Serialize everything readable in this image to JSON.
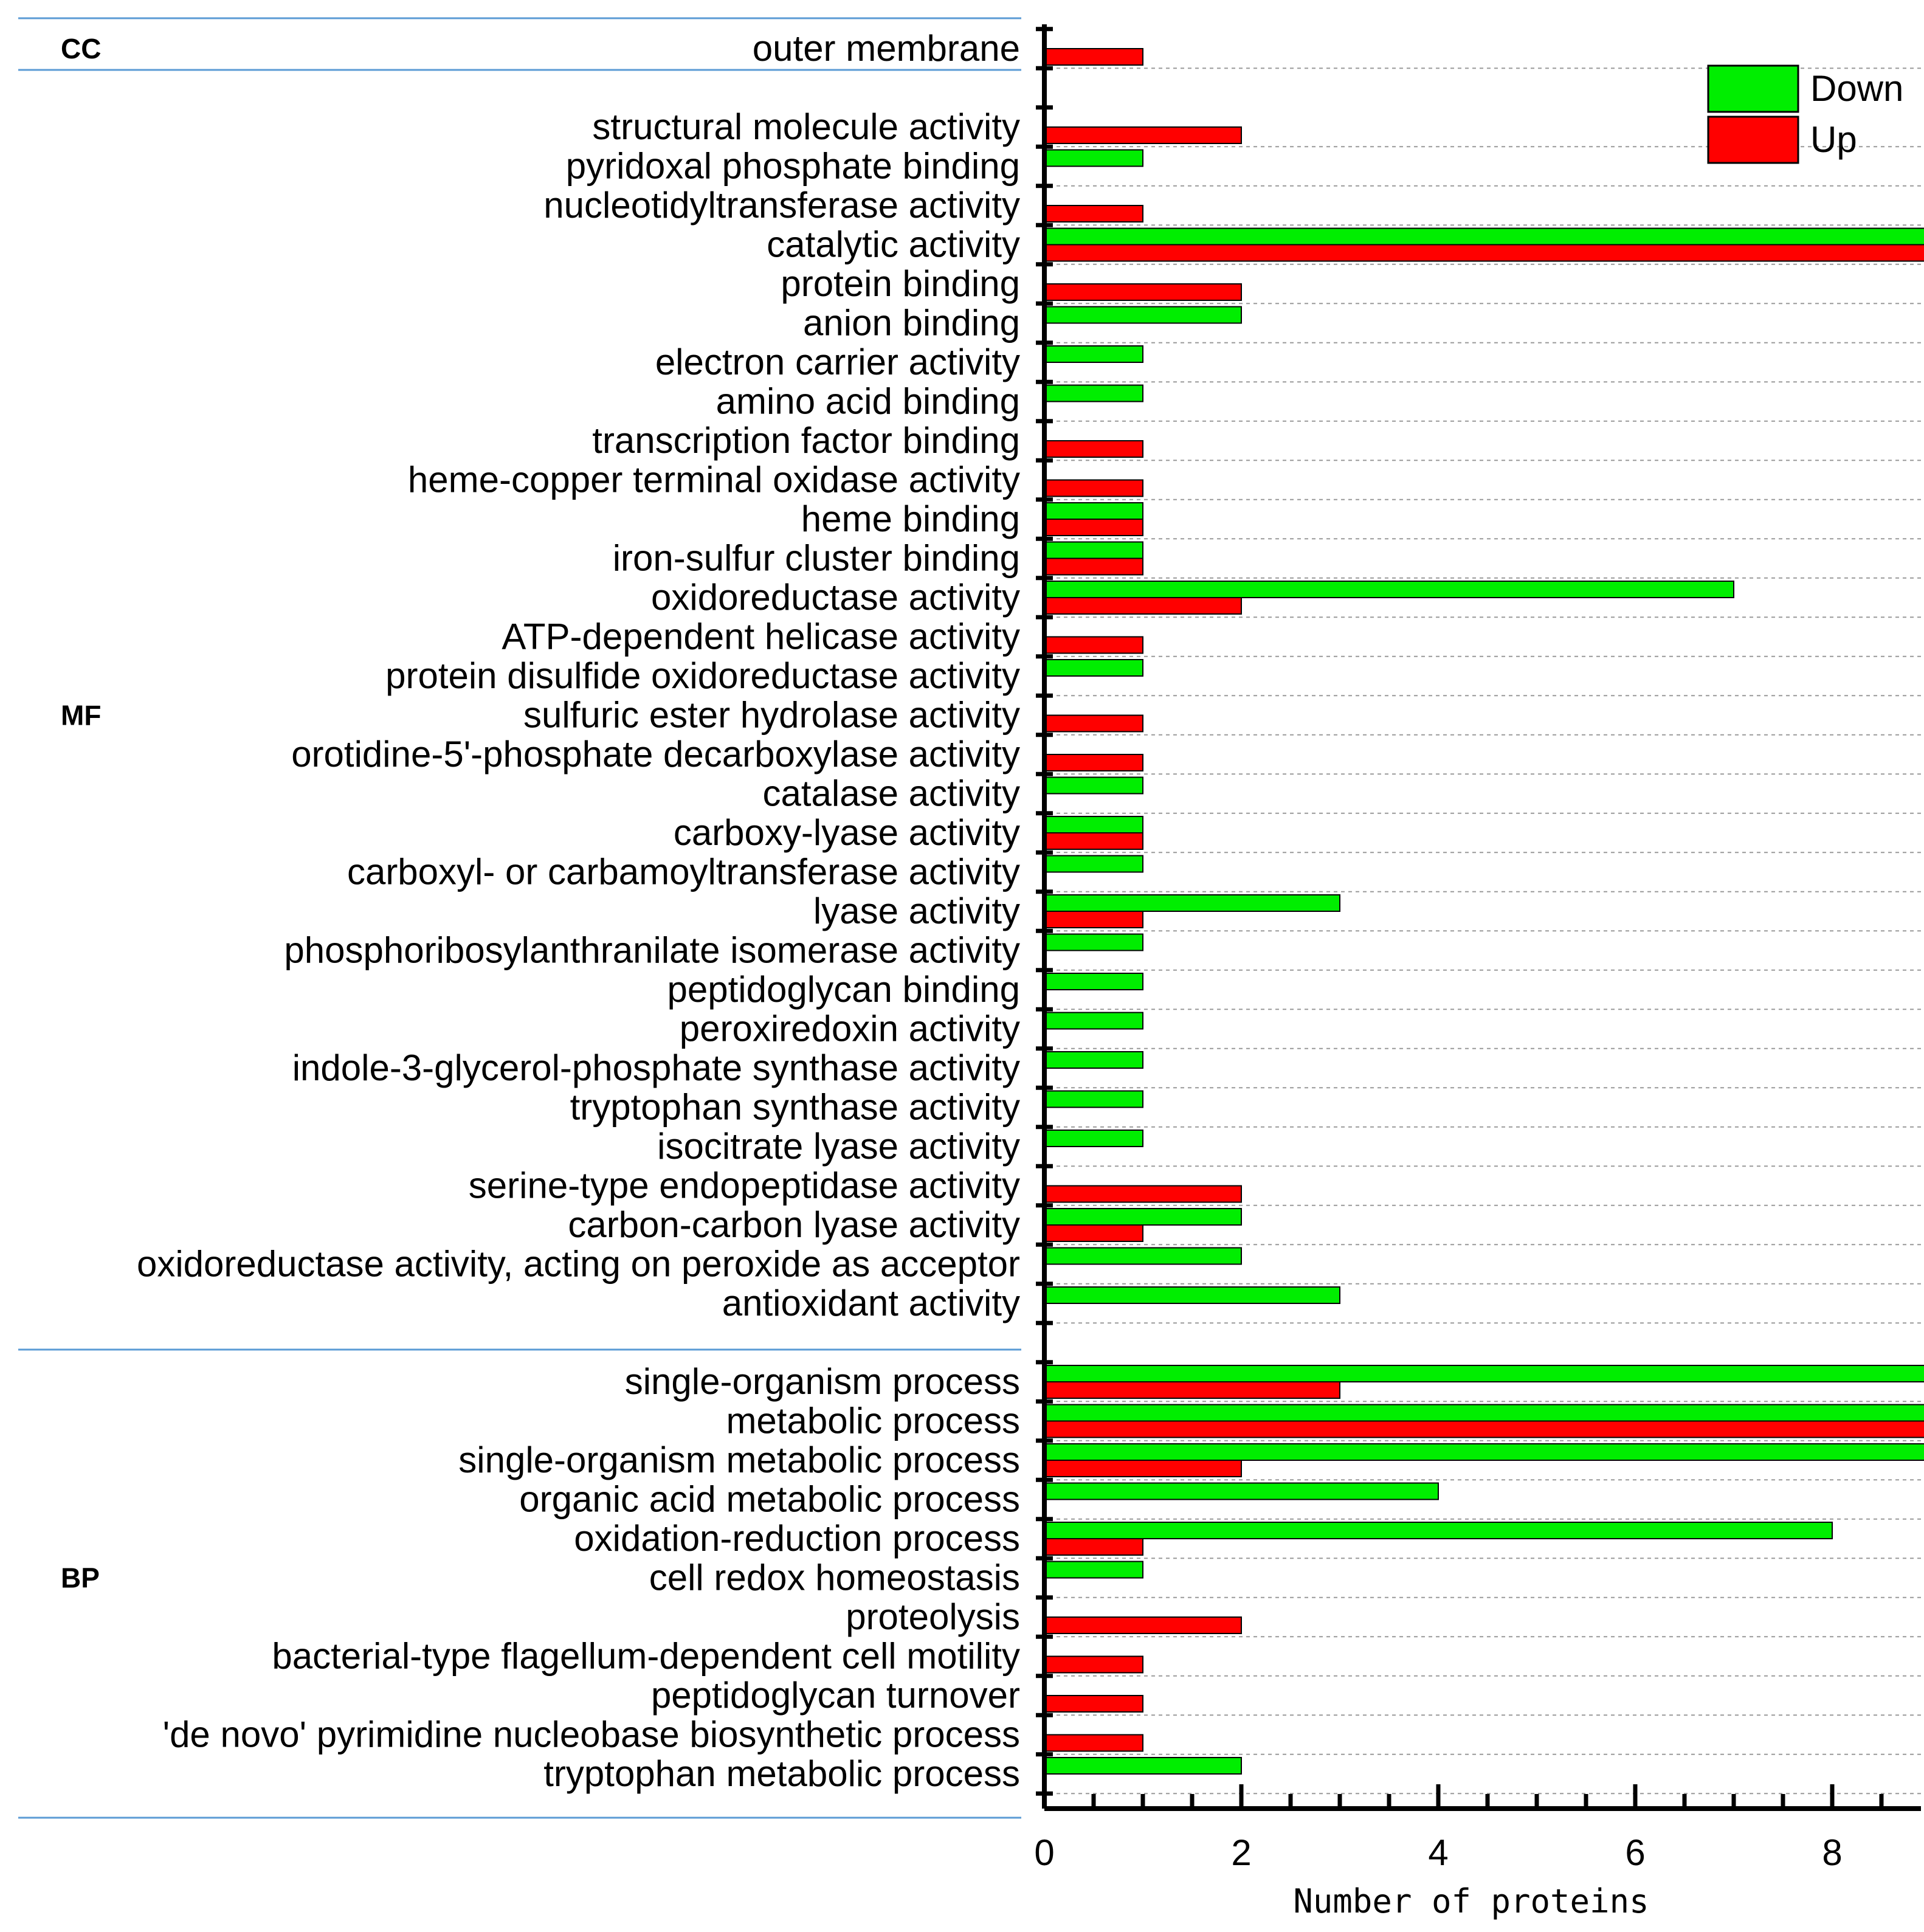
{
  "chart_data": {
    "type": "bar",
    "orientation": "horizontal",
    "xlabel": "Number of proteins",
    "xlim": [
      0,
      17.6
    ],
    "xticks": [
      0,
      2,
      4,
      6,
      8,
      10,
      12,
      14,
      16
    ],
    "grid": "dashed vertical-row separators",
    "legend_position": "top-right",
    "series": [
      {
        "name": "Down",
        "color": "#00ee00"
      },
      {
        "name": "Up",
        "color": "#ff0000"
      }
    ],
    "groups": [
      {
        "name": "CC",
        "categories": [
          {
            "label": "outer membrane",
            "down": 0,
            "up": 1
          }
        ]
      },
      {
        "name": "MF",
        "categories": [
          {
            "label": "structural molecule activity",
            "down": 0,
            "up": 2
          },
          {
            "label": "pyridoxal phosphate binding",
            "down": 1,
            "up": 0
          },
          {
            "label": "nucleotidyltransferase activity",
            "down": 0,
            "up": 1
          },
          {
            "label": "catalytic activity",
            "down": 16,
            "up": 11
          },
          {
            "label": "protein binding",
            "down": 0,
            "up": 2
          },
          {
            "label": "anion binding",
            "down": 2,
            "up": 0
          },
          {
            "label": "electron carrier activity",
            "down": 1,
            "up": 0
          },
          {
            "label": "amino acid binding",
            "down": 1,
            "up": 0
          },
          {
            "label": "transcription factor binding",
            "down": 0,
            "up": 1
          },
          {
            "label": "heme-copper terminal oxidase activity",
            "down": 0,
            "up": 1
          },
          {
            "label": "heme binding",
            "down": 1,
            "up": 1
          },
          {
            "label": "iron-sulfur cluster binding",
            "down": 1,
            "up": 1
          },
          {
            "label": "oxidoreductase activity",
            "down": 7,
            "up": 2
          },
          {
            "label": "ATP-dependent helicase activity",
            "down": 0,
            "up": 1
          },
          {
            "label": "protein disulfide oxidoreductase activity",
            "down": 1,
            "up": 0
          },
          {
            "label": "sulfuric ester hydrolase activity",
            "down": 0,
            "up": 1
          },
          {
            "label": "orotidine-5'-phosphate decarboxylase activity",
            "down": 0,
            "up": 1
          },
          {
            "label": "catalase activity",
            "down": 1,
            "up": 0
          },
          {
            "label": "carboxy-lyase activity",
            "down": 1,
            "up": 1
          },
          {
            "label": "carboxyl- or carbamoyltransferase activity",
            "down": 1,
            "up": 0
          },
          {
            "label": "lyase activity",
            "down": 3,
            "up": 1
          },
          {
            "label": "phosphoribosylanthranilate isomerase activity",
            "down": 1,
            "up": 0
          },
          {
            "label": "peptidoglycan binding",
            "down": 1,
            "up": 0
          },
          {
            "label": "peroxiredoxin activity",
            "down": 1,
            "up": 0
          },
          {
            "label": "indole-3-glycerol-phosphate synthase activity",
            "down": 1,
            "up": 0
          },
          {
            "label": "tryptophan synthase activity",
            "down": 1,
            "up": 0
          },
          {
            "label": "isocitrate lyase activity",
            "down": 1,
            "up": 0
          },
          {
            "label": "serine-type endopeptidase activity",
            "down": 0,
            "up": 2
          },
          {
            "label": "carbon-carbon lyase activity",
            "down": 2,
            "up": 1
          },
          {
            "label": "oxidoreductase activity, acting on peroxide as acceptor",
            "down": 2,
            "up": 0
          },
          {
            "label": "antioxidant activity",
            "down": 3,
            "up": 0
          }
        ]
      },
      {
        "name": "BP",
        "categories": [
          {
            "label": "single-organism process",
            "down": 13,
            "up": 3
          },
          {
            "label": "metabolic process",
            "down": 15,
            "up": 11
          },
          {
            "label": "single-organism metabolic process",
            "down": 12,
            "up": 2
          },
          {
            "label": "organic acid metabolic process",
            "down": 4,
            "up": 0
          },
          {
            "label": "oxidation-reduction process",
            "down": 8,
            "up": 1
          },
          {
            "label": "cell redox homeostasis",
            "down": 1,
            "up": 0
          },
          {
            "label": "proteolysis",
            "down": 0,
            "up": 2
          },
          {
            "label": "bacterial-type flagellum-dependent cell motility",
            "down": 0,
            "up": 1
          },
          {
            "label": "peptidoglycan turnover",
            "down": 0,
            "up": 1
          },
          {
            "label": "'de novo' pyrimidine nucleobase biosynthetic process",
            "down": 0,
            "up": 1
          },
          {
            "label": "tryptophan metabolic process",
            "down": 2,
            "up": 0
          }
        ]
      }
    ]
  }
}
